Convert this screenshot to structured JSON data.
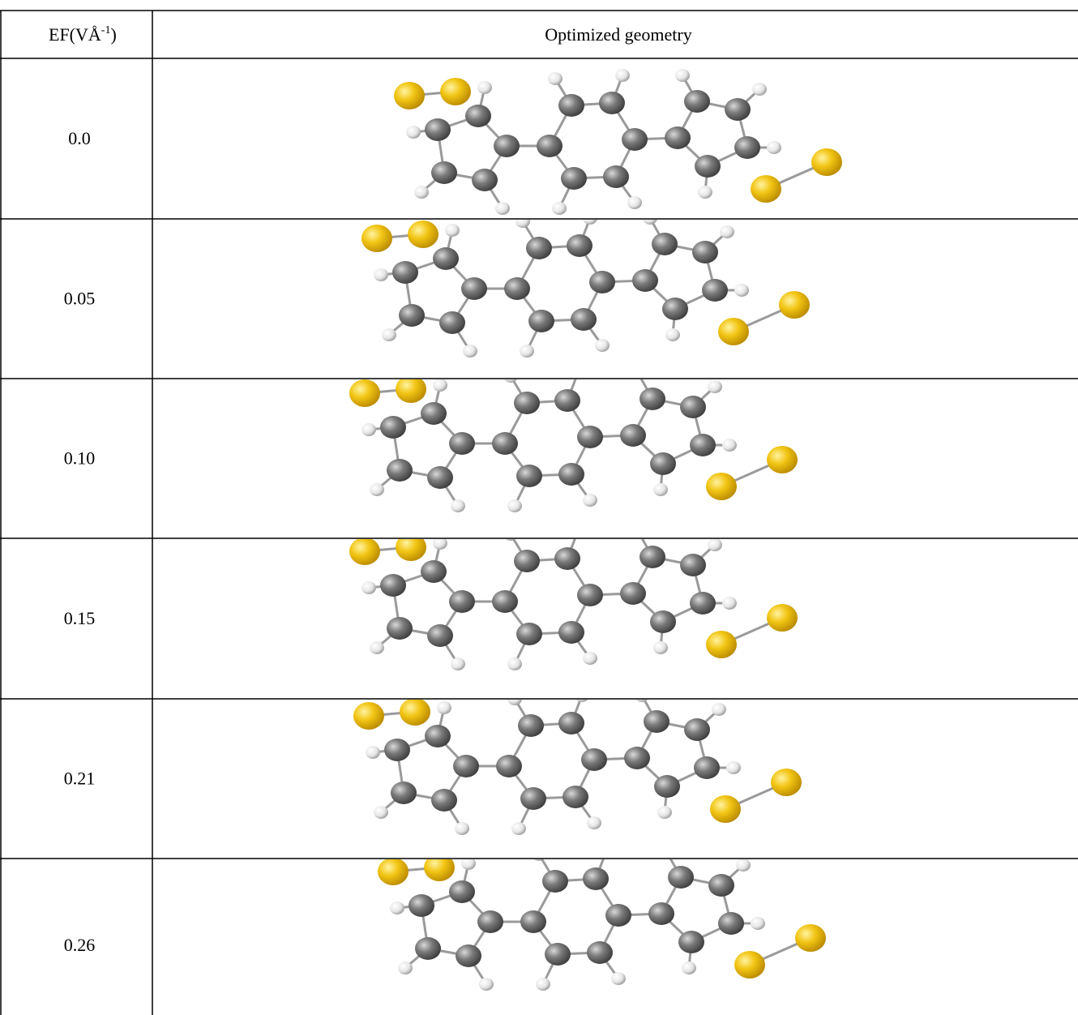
{
  "table": {
    "header": {
      "ef": {
        "main": "EF(VÅ",
        "sup": "-1",
        "close": ")"
      },
      "geometry": "Optimized geometry"
    },
    "rows": [
      "0.0",
      "0.05",
      "0.10",
      "0.15",
      "0.21",
      "0.26"
    ]
  }
}
